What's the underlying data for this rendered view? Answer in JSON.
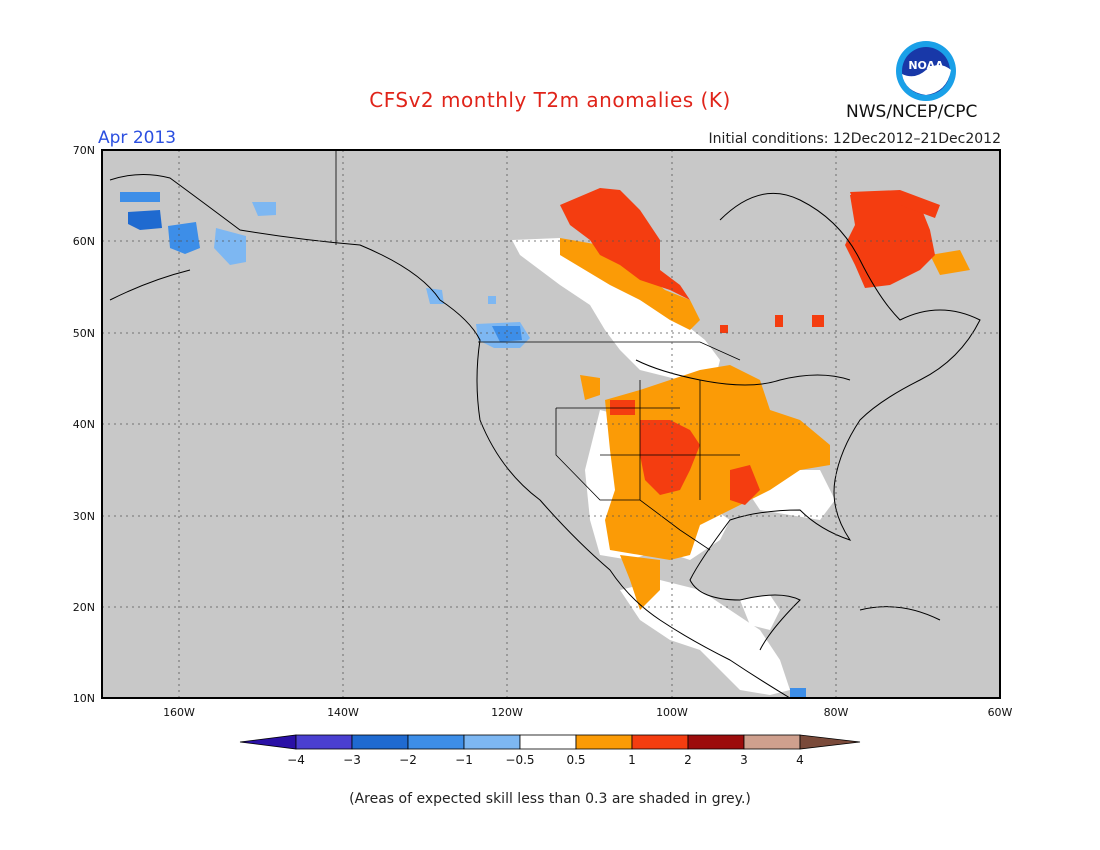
{
  "header": {
    "title": "CFSv2 monthly T2m anomalies (K)",
    "month": "Apr 2013",
    "initial_conditions": "Initial conditions: 12Dec2012–21Dec2012",
    "agency": "NWS/NCEP/CPC",
    "logo_text": "NOAA"
  },
  "axes": {
    "lat_ticks": [
      "70N",
      "60N",
      "50N",
      "40N",
      "30N",
      "20N",
      "10N"
    ],
    "lon_ticks": [
      "160W",
      "140W",
      "120W",
      "100W",
      "80W",
      "60W"
    ]
  },
  "colorbar": {
    "labels": [
      "−4",
      "−3",
      "−2",
      "−1",
      "−0.5",
      "0.5",
      "1",
      "2",
      "3",
      "4"
    ],
    "colors": [
      "#2a10a6",
      "#4a3fd0",
      "#1f6ad0",
      "#3d8ee8",
      "#7db7f2",
      "#ffffff",
      "#fb9b06",
      "#f43d10",
      "#9c0c0c",
      "#cfa08e",
      "#7a4a3a"
    ]
  },
  "legend_note": "(Areas of expected skill less than 0.3 are shaded in grey.)",
  "map_colors": {
    "ocean_grey": "#c8c8c8",
    "land_white": "#ffffff"
  }
}
